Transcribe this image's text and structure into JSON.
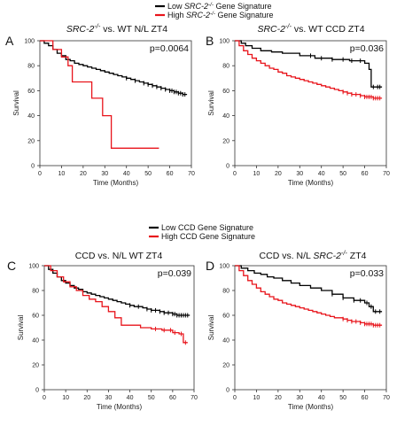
{
  "legend_top": [
    {
      "label": "Low SRC-2-/- Gene Signature",
      "color": "#000000",
      "rich": [
        "Low ",
        "SRC-2",
        "-/-",
        " Gene Signature"
      ]
    },
    {
      "label": "High SRC-2-/- Gene Signature",
      "color": "#e8141b",
      "rich": [
        "High ",
        "SRC-2",
        "-/-",
        " Gene Signature"
      ]
    }
  ],
  "legend_bottom": [
    {
      "label": "Low CCD Gene Signature",
      "color": "#000000"
    },
    {
      "label": "High CCD Gene Signature",
      "color": "#e8141b"
    }
  ],
  "chart_data": [
    {
      "type": "line",
      "panel": "A",
      "title": "SRC-2-/- vs. WT N/L ZT4",
      "title_rich": [
        "SRC-2",
        "-/-",
        " vs. WT N/L ZT4"
      ],
      "pvalue": "p=0.0064",
      "xlabel": "Time (Months)",
      "ylabel": "Survival",
      "xlim": [
        0,
        70
      ],
      "ylim": [
        0,
        100
      ],
      "xticks": [
        0,
        10,
        20,
        30,
        40,
        50,
        60,
        70
      ],
      "yticks": [
        0,
        20,
        40,
        60,
        80,
        100
      ],
      "series": [
        {
          "color": "#000000",
          "x": [
            0,
            2,
            4,
            6,
            8,
            10,
            12,
            14,
            16,
            18,
            20,
            22,
            24,
            26,
            28,
            30,
            32,
            34,
            36,
            38,
            40,
            42,
            44,
            46,
            48,
            50,
            52,
            54,
            56,
            58,
            60,
            62,
            64,
            66,
            68
          ],
          "y": [
            100,
            98,
            96,
            93,
            90,
            88,
            85,
            84,
            82,
            81,
            80,
            79,
            78,
            77,
            76,
            75,
            74,
            73,
            72,
            71,
            70,
            69,
            68,
            67,
            66,
            65,
            64,
            63,
            62,
            61,
            60,
            59,
            58,
            57,
            57
          ],
          "censor_x": [
            40,
            44,
            48,
            50,
            52,
            54,
            56,
            58,
            60,
            61,
            62,
            63,
            64,
            65,
            66,
            67
          ]
        },
        {
          "color": "#e8141b",
          "x": [
            0,
            6,
            10,
            13,
            15,
            24,
            29,
            33,
            55
          ],
          "y": [
            100,
            93,
            87,
            80,
            67,
            54,
            40,
            14,
            14
          ],
          "censor_x": []
        }
      ]
    },
    {
      "type": "line",
      "panel": "B",
      "title": "SRC-2-/- vs. WT CCD ZT4",
      "title_rich": [
        "SRC-2",
        "-/-",
        " vs. WT CCD ZT4"
      ],
      "pvalue": "p=0.036",
      "xlabel": "Time (Months)",
      "ylabel": "Survival",
      "xlim": [
        0,
        70
      ],
      "ylim": [
        0,
        100
      ],
      "xticks": [
        0,
        10,
        20,
        30,
        40,
        50,
        60,
        70
      ],
      "yticks": [
        0,
        20,
        40,
        60,
        80,
        100
      ],
      "series": [
        {
          "color": "#000000",
          "x": [
            0,
            3,
            5,
            8,
            12,
            17,
            22,
            30,
            37,
            45,
            53,
            60,
            62,
            63,
            68
          ],
          "y": [
            100,
            98,
            96,
            94,
            92,
            91,
            90,
            88,
            86,
            85,
            84,
            82,
            77,
            63,
            63
          ],
          "censor_x": [
            35,
            40,
            45,
            50,
            54,
            58,
            64,
            66,
            67
          ]
        },
        {
          "color": "#e8141b",
          "x": [
            0,
            2,
            4,
            6,
            8,
            10,
            12,
            14,
            16,
            18,
            20,
            22,
            24,
            26,
            28,
            30,
            32,
            34,
            36,
            38,
            40,
            42,
            44,
            46,
            48,
            50,
            52,
            54,
            56,
            58,
            60,
            62,
            64,
            66,
            68
          ],
          "y": [
            100,
            96,
            92,
            89,
            86,
            84,
            82,
            80,
            78,
            77,
            75,
            74,
            72,
            71,
            70,
            69,
            68,
            67,
            66,
            65,
            64,
            63,
            62,
            61,
            60,
            59,
            58,
            57,
            57,
            56,
            55,
            55,
            54,
            54,
            54
          ],
          "censor_x": [
            50,
            52,
            54,
            56,
            58,
            60,
            61,
            62,
            63,
            64,
            65,
            66,
            67
          ]
        }
      ]
    },
    {
      "type": "line",
      "panel": "C",
      "title": "CCD vs. N/L WT ZT4",
      "title_rich": [
        "CCD vs. N/L WT ZT4"
      ],
      "pvalue": "p=0.039",
      "xlabel": "Time (Months)",
      "ylabel": "Survival",
      "xlim": [
        0,
        70
      ],
      "ylim": [
        0,
        100
      ],
      "xticks": [
        0,
        10,
        20,
        30,
        40,
        50,
        60,
        70
      ],
      "yticks": [
        0,
        20,
        40,
        60,
        80,
        100
      ],
      "series": [
        {
          "color": "#000000",
          "x": [
            0,
            2,
            4,
            6,
            8,
            10,
            12,
            14,
            16,
            18,
            20,
            22,
            24,
            26,
            28,
            30,
            32,
            34,
            36,
            38,
            40,
            42,
            44,
            46,
            48,
            50,
            52,
            54,
            56,
            58,
            60,
            62,
            64,
            66,
            68
          ],
          "y": [
            100,
            97,
            94,
            91,
            88,
            86,
            84,
            82,
            81,
            79,
            78,
            77,
            76,
            75,
            74,
            73,
            72,
            71,
            70,
            69,
            68,
            67,
            67,
            66,
            65,
            64,
            64,
            63,
            62,
            62,
            61,
            60,
            60,
            60,
            60
          ],
          "censor_x": [
            40,
            44,
            48,
            50,
            52,
            54,
            56,
            58,
            60,
            61,
            62,
            63,
            64,
            65,
            66,
            67
          ]
        },
        {
          "color": "#e8141b",
          "x": [
            0,
            3,
            6,
            9,
            12,
            15,
            18,
            21,
            24,
            27,
            30,
            33,
            36,
            40,
            45,
            50,
            55,
            60,
            63,
            65,
            67
          ],
          "y": [
            100,
            96,
            91,
            87,
            83,
            80,
            76,
            73,
            71,
            67,
            63,
            58,
            52,
            52,
            50,
            49,
            48,
            46,
            45,
            38,
            38
          ],
          "censor_x": [
            52,
            56,
            59,
            61,
            64,
            66
          ]
        }
      ]
    },
    {
      "type": "line",
      "panel": "D",
      "title": "CCD vs. N/L SRC-2-/- ZT4",
      "title_rich": [
        "CCD vs. N/L ",
        "SRC-2",
        "-/-",
        " ZT4"
      ],
      "pvalue": "p=0.033",
      "xlabel": "Time (Months)",
      "ylabel": "Survival",
      "xlim": [
        0,
        70
      ],
      "ylim": [
        0,
        100
      ],
      "xticks": [
        0,
        10,
        20,
        30,
        40,
        50,
        60,
        70
      ],
      "yticks": [
        0,
        20,
        40,
        60,
        80,
        100
      ],
      "series": [
        {
          "color": "#000000",
          "x": [
            0,
            3,
            6,
            9,
            12,
            15,
            18,
            22,
            26,
            30,
            35,
            40,
            45,
            50,
            55,
            60,
            62,
            64,
            68
          ],
          "y": [
            100,
            98,
            96,
            94,
            93,
            91,
            90,
            88,
            86,
            84,
            82,
            80,
            77,
            74,
            72,
            70,
            67,
            63,
            63
          ],
          "censor_x": [
            45,
            50,
            55,
            58,
            61,
            63,
            65,
            67
          ]
        },
        {
          "color": "#e8141b",
          "x": [
            0,
            2,
            4,
            6,
            8,
            10,
            12,
            14,
            16,
            18,
            20,
            22,
            24,
            26,
            28,
            30,
            32,
            34,
            36,
            38,
            40,
            42,
            44,
            46,
            48,
            50,
            52,
            54,
            56,
            58,
            60,
            62,
            64,
            66,
            68
          ],
          "y": [
            100,
            96,
            92,
            88,
            85,
            82,
            79,
            77,
            75,
            73,
            72,
            70,
            69,
            68,
            67,
            66,
            65,
            64,
            63,
            62,
            61,
            60,
            59,
            58,
            58,
            57,
            56,
            55,
            55,
            54,
            53,
            53,
            52,
            52,
            52
          ],
          "censor_x": [
            50,
            52,
            54,
            56,
            58,
            60,
            61,
            62,
            63,
            64,
            65,
            66,
            67
          ]
        }
      ]
    }
  ]
}
